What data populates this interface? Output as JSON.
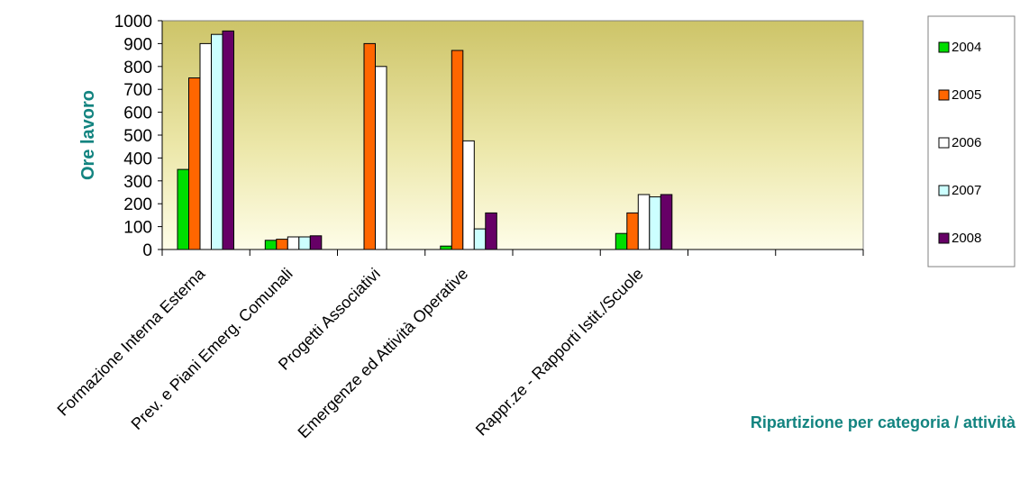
{
  "chart_data": {
    "type": "bar",
    "ylabel": "Ore lavoro",
    "xlabel": "Ripartizione per categoria / attività",
    "ylim": [
      0,
      1000
    ],
    "yticks": [
      0,
      100,
      200,
      300,
      400,
      500,
      600,
      700,
      800,
      900,
      1000
    ],
    "categories": [
      "Formazione Interna Esterna",
      "Prev. e Piani Emerg. Comunali",
      "Progetti  Associativi",
      "Emergenze ed Attività Operative",
      "",
      "Rappr.ze - Rapporti Istit./Scuole",
      "",
      ""
    ],
    "series": [
      {
        "name": "2004",
        "color": "#00dd00",
        "values": [
          350,
          40,
          null,
          15,
          null,
          70,
          null,
          null
        ]
      },
      {
        "name": "2005",
        "color": "#ff6600",
        "values": [
          750,
          45,
          900,
          870,
          null,
          160,
          null,
          null
        ]
      },
      {
        "name": "2006",
        "color": "#ffffff",
        "values": [
          900,
          55,
          800,
          475,
          null,
          240,
          null,
          null
        ]
      },
      {
        "name": "2007",
        "color": "#ccffff",
        "values": [
          940,
          55,
          null,
          90,
          null,
          230,
          null,
          null
        ]
      },
      {
        "name": "2008",
        "color": "#660066",
        "values": [
          955,
          60,
          null,
          160,
          null,
          240,
          null,
          null
        ]
      }
    ],
    "legend_position": "right",
    "plot_background": "yellow-gradient",
    "grid": false
  }
}
